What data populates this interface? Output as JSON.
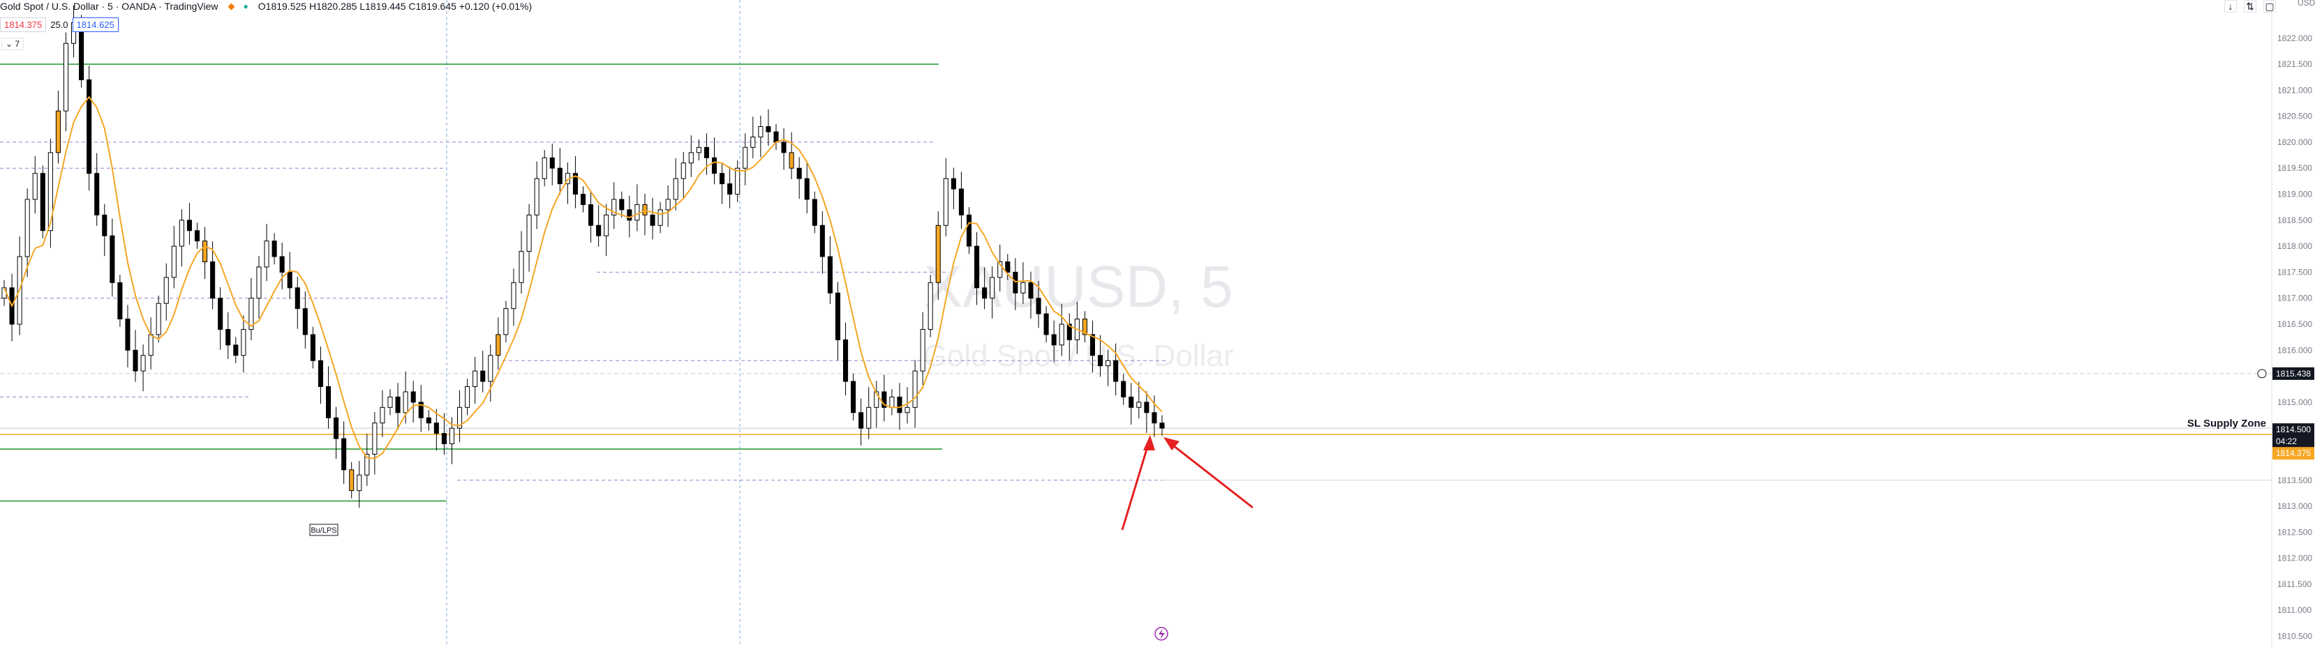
{
  "header": {
    "title": "Gold Spot / U.S. Dollar · 5 · OANDA · TradingView",
    "ohlc": "O1819.525 H1820.285 L1819.445 C1819.645 +0.120 (+0.01%)"
  },
  "order": {
    "sell": "1814.375",
    "spread": "25.0",
    "buy": "1814.625"
  },
  "indicator_toggle": "7",
  "watermark": {
    "symbol": "XAUUSD, 5",
    "name": "Gold Spot / U.S. Dollar"
  },
  "currency": "USD",
  "labels": {
    "bu_lps": "Bu/LPS",
    "zone": "SL Supply Zone"
  },
  "price_tags": {
    "crosshair": "1815.438",
    "last": "1814.500",
    "countdown": "04:22",
    "bid": "1814.375"
  },
  "colors": {
    "up": "#ffffff",
    "down": "#000000",
    "ma": "#f5a623",
    "zone": "#2e9e3e",
    "arrow": "#e52020",
    "level": "#9c7fc9"
  },
  "icons": [
    "down-arrow-icon",
    "compare-icon",
    "fullscreen-icon",
    "lightning-icon"
  ],
  "chart_data": {
    "type": "candlestick",
    "ylim": [
      1810.4,
      1822.6
    ],
    "y_ticks": [
      "1822.000",
      "1821.500",
      "1821.000",
      "1820.500",
      "1820.000",
      "1819.500",
      "1819.000",
      "1818.500",
      "1818.000",
      "1817.500",
      "1817.000",
      "1816.500",
      "1816.000",
      "1815.500",
      "1815.000",
      "1814.500",
      "1814.000",
      "1813.500",
      "1813.000",
      "1812.500",
      "1812.000",
      "1811.500",
      "1811.000",
      "1810.500"
    ],
    "closes": [
      1817.2,
      1816.5,
      1817.8,
      1818.9,
      1819.4,
      1818.3,
      1819.8,
      1820.6,
      1821.9,
      1822.3,
      1821.2,
      1819.4,
      1818.6,
      1818.2,
      1817.3,
      1816.6,
      1816.0,
      1815.6,
      1815.9,
      1816.3,
      1816.9,
      1817.4,
      1818.0,
      1818.5,
      1818.3,
      1818.1,
      1817.7,
      1817.0,
      1816.4,
      1816.1,
      1815.9,
      1816.4,
      1817.0,
      1817.6,
      1818.1,
      1817.8,
      1817.5,
      1817.2,
      1816.8,
      1816.3,
      1815.8,
      1815.3,
      1814.7,
      1814.3,
      1813.7,
      1813.3,
      1813.6,
      1814.0,
      1814.6,
      1814.9,
      1815.1,
      1814.8,
      1815.2,
      1815.0,
      1814.7,
      1814.6,
      1814.4,
      1814.2,
      1814.5,
      1814.9,
      1815.3,
      1815.6,
      1815.4,
      1815.9,
      1816.3,
      1816.8,
      1817.3,
      1817.9,
      1818.6,
      1819.3,
      1819.7,
      1819.5,
      1819.2,
      1819.4,
      1819.0,
      1818.8,
      1818.4,
      1818.2,
      1818.6,
      1818.9,
      1818.7,
      1818.5,
      1818.8,
      1818.6,
      1818.4,
      1818.7,
      1818.9,
      1819.3,
      1819.6,
      1819.8,
      1819.9,
      1819.7,
      1819.4,
      1819.2,
      1819.0,
      1819.5,
      1819.9,
      1820.1,
      1820.3,
      1820.2,
      1820.0,
      1819.8,
      1819.5,
      1819.3,
      1818.9,
      1818.4,
      1817.8,
      1817.1,
      1816.2,
      1815.4,
      1814.8,
      1814.5,
      1814.9,
      1815.2,
      1814.9,
      1815.1,
      1814.8,
      1814.9,
      1815.6,
      1816.4,
      1817.3,
      1818.4,
      1819.3,
      1819.1,
      1818.6,
      1818.0,
      1817.2,
      1817.0,
      1817.4,
      1817.7,
      1817.5,
      1817.1,
      1817.3,
      1817.0,
      1816.7,
      1816.3,
      1816.1,
      1816.5,
      1816.2,
      1816.6,
      1816.3,
      1815.9,
      1815.7,
      1815.8,
      1815.4,
      1815.1,
      1814.9,
      1815.0,
      1814.8,
      1814.6,
      1814.5
    ]
  }
}
